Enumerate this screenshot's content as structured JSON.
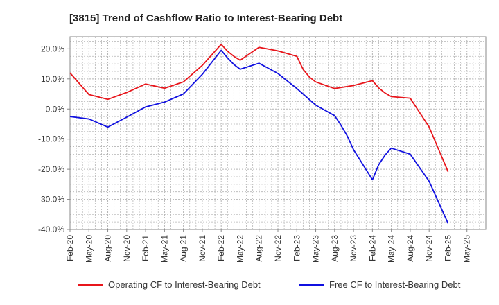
{
  "chart_data": {
    "type": "line",
    "title": "[3815]  Trend of Cashflow Ratio to Interest-Bearing Debt",
    "xlabel": "",
    "ylabel": "",
    "x_tick_labels": [
      "Feb-20",
      "May-20",
      "Aug-20",
      "Nov-20",
      "Feb-21",
      "May-21",
      "Aug-21",
      "Nov-21",
      "Feb-22",
      "May-22",
      "Aug-22",
      "Nov-22",
      "Feb-23",
      "May-23",
      "Aug-23",
      "Nov-23",
      "Feb-24",
      "May-24",
      "Aug-24",
      "Nov-24",
      "Feb-25",
      "May-25"
    ],
    "y_tick_labels": [
      "20.0%",
      "10.0%",
      "0.0%",
      "-10.0%",
      "-20.0%",
      "-30.0%",
      "-40.0%"
    ],
    "y_ticks": [
      20,
      10,
      0,
      -10,
      -20,
      -30,
      -40
    ],
    "ylim": [
      -40,
      24
    ],
    "grid": true,
    "legend_position": "bottom",
    "series": [
      {
        "name": "Operating CF to Interest-Bearing Debt",
        "color": "#e8151b",
        "points": [
          [
            0,
            12.0
          ],
          [
            1,
            4.8
          ],
          [
            2,
            3.2
          ],
          [
            3,
            5.5
          ],
          [
            4,
            8.3
          ],
          [
            5,
            6.9
          ],
          [
            6,
            9.0
          ],
          [
            7,
            14.5
          ],
          [
            8,
            21.5
          ],
          [
            8.33,
            19.2
          ],
          [
            8.67,
            17.5
          ],
          [
            9,
            16.2
          ],
          [
            10,
            20.5
          ],
          [
            11,
            19.3
          ],
          [
            12,
            17.5
          ],
          [
            12.33,
            13.2
          ],
          [
            12.67,
            10.6
          ],
          [
            13,
            9.0
          ],
          [
            14,
            6.8
          ],
          [
            15,
            7.8
          ],
          [
            16,
            9.4
          ],
          [
            16.33,
            7.0
          ],
          [
            16.67,
            5.3
          ],
          [
            17,
            4.1
          ],
          [
            18,
            3.6
          ],
          [
            19,
            -6.0
          ],
          [
            20,
            -20.8
          ]
        ]
      },
      {
        "name": "Free CF to Interest-Bearing Debt",
        "color": "#1010e0",
        "points": [
          [
            0,
            -2.5
          ],
          [
            1,
            -3.3
          ],
          [
            2,
            -6.0
          ],
          [
            3,
            -2.7
          ],
          [
            4,
            0.7
          ],
          [
            5,
            2.3
          ],
          [
            6,
            5.0
          ],
          [
            7,
            11.5
          ],
          [
            8,
            19.5
          ],
          [
            8.33,
            17.0
          ],
          [
            8.67,
            14.8
          ],
          [
            9,
            13.2
          ],
          [
            10,
            15.2
          ],
          [
            11,
            11.8
          ],
          [
            12,
            6.8
          ],
          [
            13,
            1.3
          ],
          [
            14,
            -2.2
          ],
          [
            14.33,
            -5.3
          ],
          [
            14.67,
            -9.0
          ],
          [
            15,
            -13.5
          ],
          [
            16,
            -23.5
          ],
          [
            16.33,
            -18.5
          ],
          [
            16.67,
            -15.3
          ],
          [
            17,
            -13.0
          ],
          [
            18,
            -15.0
          ],
          [
            19,
            -24.0
          ],
          [
            20,
            -38.0
          ]
        ]
      }
    ]
  },
  "axis_color": "#888888",
  "grid_color": "#b4b4b4"
}
